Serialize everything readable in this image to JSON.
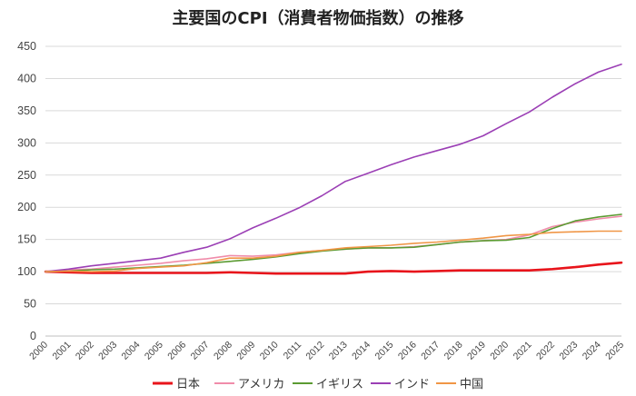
{
  "chart_data": {
    "type": "line",
    "title": "主要国のCPI（消費者物価指数）の推移",
    "x": [
      "2000",
      "2001",
      "2002",
      "2003",
      "2004",
      "2005",
      "2006",
      "2007",
      "2008",
      "2009",
      "2010",
      "2011",
      "2012",
      "2013",
      "2014",
      "2015",
      "2016",
      "2017",
      "2018",
      "2019",
      "2020",
      "2021",
      "2022",
      "2023",
      "2024",
      "2025"
    ],
    "ylim": [
      0,
      450
    ],
    "yticks": [
      0,
      50,
      100,
      150,
      200,
      250,
      300,
      350,
      400,
      450
    ],
    "grid": true,
    "legend_position": "bottom",
    "series": [
      {
        "name": "日本",
        "color": "#e8141b",
        "values": [
          100,
          99,
          98,
          98,
          98,
          98,
          98,
          98,
          99,
          98,
          97,
          97,
          97,
          97,
          100,
          101,
          100,
          101,
          102,
          102,
          102,
          102,
          104,
          107,
          111,
          114
        ]
      },
      {
        "name": "アメリカ",
        "color": "#f08caa",
        "values": [
          100,
          103,
          104,
          107,
          110,
          113,
          117,
          120,
          125,
          124,
          126,
          130,
          133,
          135,
          137,
          137,
          139,
          142,
          146,
          148,
          150,
          157,
          170,
          177,
          182,
          186
        ]
      },
      {
        "name": "イギリス",
        "color": "#5b9b32",
        "values": [
          100,
          101,
          103,
          104,
          106,
          108,
          110,
          113,
          116,
          119,
          123,
          128,
          132,
          135,
          137,
          137,
          138,
          142,
          146,
          148,
          149,
          153,
          167,
          179,
          185,
          189
        ]
      },
      {
        "name": "インド",
        "color": "#9b3fb5",
        "values": [
          100,
          104,
          109,
          113,
          117,
          121,
          130,
          138,
          151,
          168,
          183,
          199,
          218,
          240,
          253,
          266,
          278,
          288,
          298,
          311,
          330,
          348,
          371,
          392,
          410,
          422
        ]
      },
      {
        "name": "中国",
        "color": "#f09646",
        "values": [
          100,
          101,
          100,
          101,
          105,
          107,
          109,
          114,
          121,
          121,
          124,
          130,
          133,
          137,
          139,
          141,
          144,
          146,
          149,
          152,
          156,
          158,
          161,
          162,
          163,
          163
        ]
      }
    ]
  }
}
